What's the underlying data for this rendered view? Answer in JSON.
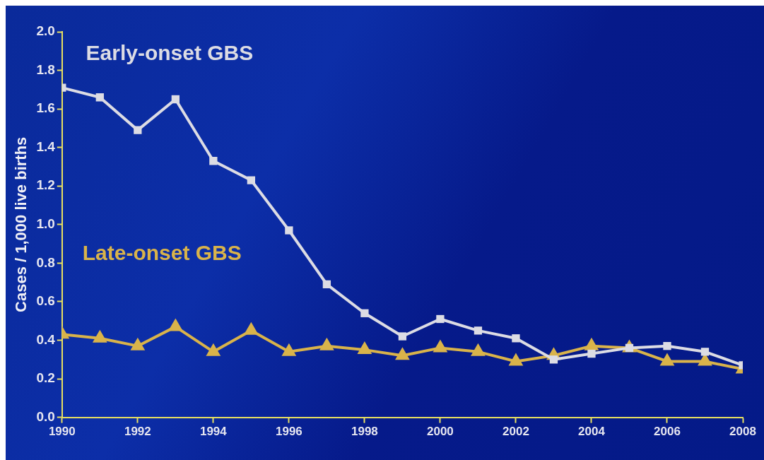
{
  "chart_data": {
    "type": "line",
    "ylabel": "Cases / 1,000 live births",
    "x": [
      1990,
      1991,
      1992,
      1993,
      1994,
      1995,
      1996,
      1997,
      1998,
      1999,
      2000,
      2001,
      2002,
      2003,
      2004,
      2005,
      2006,
      2007,
      2008
    ],
    "xlim": [
      1990,
      2008
    ],
    "xticks": [
      1990,
      1992,
      1994,
      1996,
      1998,
      2000,
      2002,
      2004,
      2006,
      2008
    ],
    "ylim": [
      0,
      2
    ],
    "yticks": [
      {
        "value": 0,
        "label": "0.0"
      },
      {
        "value": 0.2,
        "label": "0.2"
      },
      {
        "value": 0.4,
        "label": "0.4"
      },
      {
        "value": 0.6,
        "label": "0.6"
      },
      {
        "value": 0.8,
        "label": "0.8"
      },
      {
        "value": 1,
        "label": "1.0"
      },
      {
        "value": 1.2,
        "label": "1.2"
      },
      {
        "value": 1.4,
        "label": "1.4"
      },
      {
        "value": 1.6,
        "label": "1.6"
      },
      {
        "value": 1.8,
        "label": "1.8"
      },
      {
        "value": 2,
        "label": "2.0"
      }
    ],
    "grid": false,
    "legend": false,
    "line_style": "solid",
    "series": [
      {
        "name": "Early-onset GBS",
        "color": "#dcdce4",
        "marker": "square",
        "values": [
          1.71,
          1.66,
          1.49,
          1.65,
          1.33,
          1.23,
          0.97,
          0.69,
          0.54,
          0.42,
          0.51,
          0.45,
          0.41,
          0.3,
          0.33,
          0.36,
          0.37,
          0.34,
          0.27
        ]
      },
      {
        "name": "Late-onset GBS",
        "color": "#d9b34a",
        "marker": "triangle",
        "values": [
          0.43,
          0.41,
          0.37,
          0.47,
          0.34,
          0.45,
          0.34,
          0.37,
          0.35,
          0.32,
          0.36,
          0.34,
          0.29,
          0.32,
          0.37,
          0.36,
          0.29,
          0.29,
          0.25
        ]
      }
    ]
  }
}
